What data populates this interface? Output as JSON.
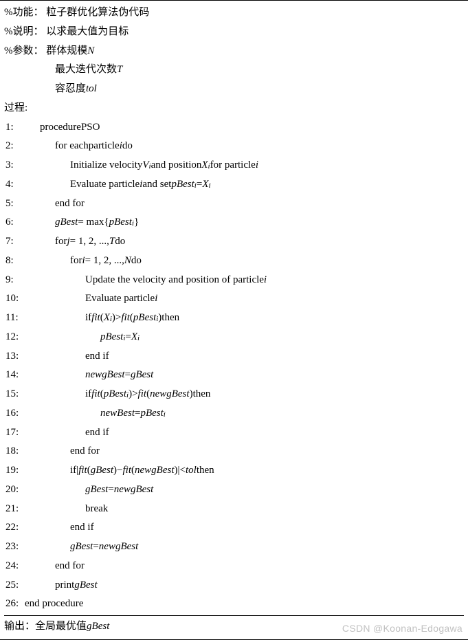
{
  "header": {
    "func_label": "%功能：",
    "func_val": "粒子群优化算法伪代码",
    "desc_label": "%说明：",
    "desc_val": "以求最大值为目标",
    "param_label": "%参数：",
    "param1_pre": "群体规模",
    "param1_sym": "N",
    "param2_pre": "最大迭代次数",
    "param2_sym": "T",
    "param3_pre": "容忍度",
    "param3_sym": "tol"
  },
  "proc_label": "过程:",
  "lines": {
    "l1": {
      "no": "1:",
      "kw": "procedure",
      "name": " PSO"
    },
    "l2": {
      "no": "2:",
      "kw": "for each ",
      "txt": "particle  ",
      "var": "i",
      "post": "  do"
    },
    "l3": {
      "no": "3:",
      "a": "Initialize velocity  ",
      "v": "V",
      "vi": "i",
      "b": "  and position  ",
      "x": "X",
      "xi": "i",
      "c": "  for particle  ",
      "p": "i"
    },
    "l4": {
      "no": "4:",
      "a": "Evaluate particle  ",
      "v": "i",
      "b": "  and set  ",
      "p": "pBest",
      "pi": "i",
      "eq": " = ",
      "x": "X",
      "xi": "i"
    },
    "l5": {
      "no": "5:",
      "kw": "end for"
    },
    "l6": {
      "no": "6:",
      "g": "gBest",
      "eq": " = max{ ",
      "p": "pBest",
      "pi": "i",
      "cb": " }"
    },
    "l7": {
      "no": "7:",
      "kw": "for  ",
      "j": "j",
      "eq": " = 1, 2, ..., ",
      "T": "T",
      "post": "  do"
    },
    "l8": {
      "no": "8:",
      "kw": "for  ",
      "i": "i",
      "eq": " = 1, 2, ..., ",
      "N": "N",
      "post": "  do"
    },
    "l9": {
      "no": "9:",
      "txt": "Update the velocity and position of particle  ",
      "i": "i"
    },
    "l10": {
      "no": "10:",
      "txt": "Evaluate particle  ",
      "i": "i"
    },
    "l11": {
      "no": "11:",
      "kw": "if  ",
      "f1": "fit",
      "lp": "(",
      "x": "X",
      "xi": "i",
      "rp": ")",
      "gt": " > ",
      "f2": "fit",
      "lp2": "(",
      "p": "pBest",
      "pi": "i",
      "rp2": ")",
      "post": "  then"
    },
    "l12": {
      "no": "12:",
      "p": "pBest",
      "pi": "i",
      "eq": " = ",
      "x": "X",
      "xi": "i"
    },
    "l13": {
      "no": "13:",
      "kw": "end if"
    },
    "l14": {
      "no": "14:",
      "n": "newgBest",
      "eq": " = ",
      "g": "gBest"
    },
    "l15": {
      "no": "15:",
      "kw": "if  ",
      "f1": "fit",
      "lp": "(",
      "p": "pBest",
      "pi": "i",
      "rp": ")",
      "gt": " > ",
      "f2": "fit",
      "lp2": "(",
      "n": "newgBest",
      "rp2": ")",
      "post": "  then"
    },
    "l16": {
      "no": "16:",
      "n": "newBest",
      "eq": " = ",
      "p": "pBest",
      "pi": "i"
    },
    "l17": {
      "no": "17:",
      "kw": "end if"
    },
    "l18": {
      "no": "18:",
      "kw": "end for"
    },
    "l19": {
      "no": "19:",
      "kw": "if  ",
      "bar": "|",
      "f1": "fit",
      "lp": "(",
      "g": "gBest",
      "rp": ")",
      "minus": " − ",
      "f2": "fit",
      "lp2": "(",
      "n": "newgBest",
      "rp2": ")",
      "bar2": "|",
      "lt": " < ",
      "tol": "tol",
      "post": "  then"
    },
    "l20": {
      "no": "20:",
      "g": "gBest",
      "eq": " = ",
      "n": "newgBest"
    },
    "l21": {
      "no": "21:",
      "kw": "break"
    },
    "l22": {
      "no": "22:",
      "kw": "end if"
    },
    "l23": {
      "no": "23:",
      "g": "gBest",
      "eq": " = ",
      "n": "newgBest"
    },
    "l24": {
      "no": "24:",
      "kw": "end for"
    },
    "l25": {
      "no": "25:",
      "kw": "print  ",
      "g": "gBest"
    },
    "l26": {
      "no": "26:",
      "kw": " end procedure"
    }
  },
  "output": {
    "label": "输出：",
    "txt": "全局最优值",
    "g": "gBest"
  },
  "watermark": "CSDN @Koonan-Edogawa"
}
